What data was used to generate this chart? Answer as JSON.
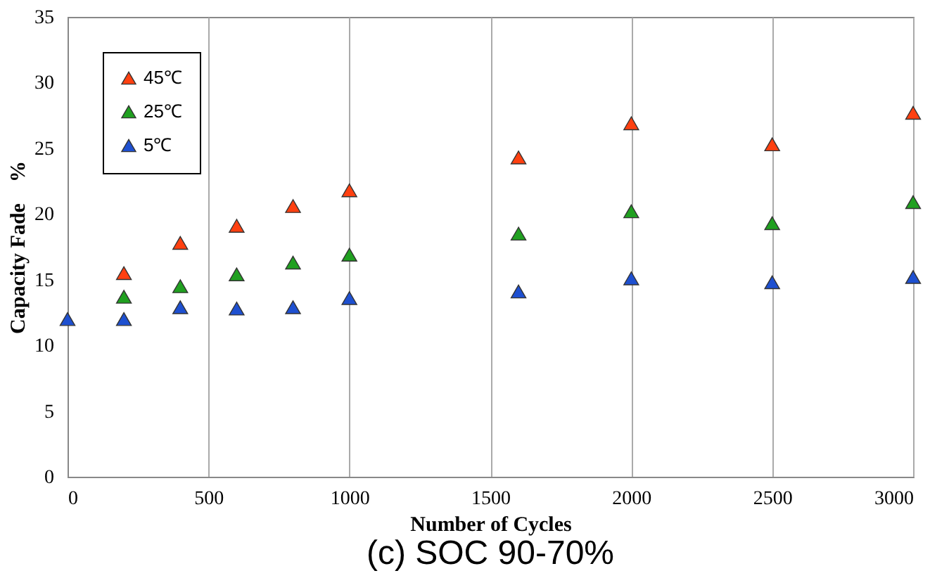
{
  "chart_data": {
    "type": "scatter",
    "title": "(c) SOC 90-70%",
    "xlabel": "Number of Cycles",
    "ylabel": "Capacity Fade　%",
    "x": [
      0,
      200,
      400,
      600,
      800,
      1000,
      1600,
      2000,
      2500,
      3000
    ],
    "series": [
      {
        "name": "45℃",
        "color": "#ff4010",
        "values": [
          null,
          15.5,
          17.8,
          19.1,
          20.6,
          21.8,
          24.3,
          26.9,
          25.3,
          27.7
        ]
      },
      {
        "name": "25℃",
        "color": "#20a020",
        "values": [
          null,
          13.7,
          14.5,
          15.4,
          16.3,
          16.9,
          18.5,
          20.2,
          19.3,
          20.9
        ]
      },
      {
        "name": "5℃",
        "color": "#1e50d0",
        "values": [
          12.0,
          12.0,
          12.9,
          12.8,
          12.9,
          13.6,
          14.1,
          15.1,
          14.8,
          15.2
        ]
      }
    ],
    "xlim": [
      0,
      3000
    ],
    "xticks": [
      0,
      500,
      1000,
      1500,
      2000,
      2500,
      3000
    ],
    "ylim": [
      0,
      35
    ],
    "yticks": [
      0,
      5,
      10,
      15,
      20,
      25,
      30,
      35
    ],
    "grid": "x",
    "legend": "top left",
    "marker": "triangle"
  }
}
